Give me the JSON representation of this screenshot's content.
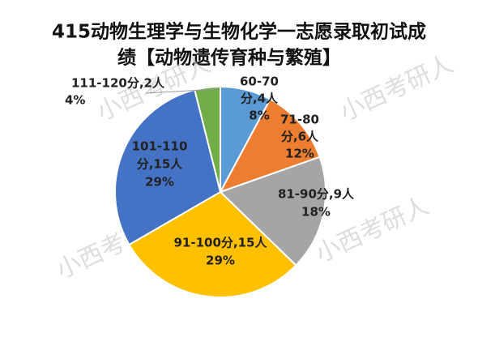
{
  "chart_data": {
    "type": "pie",
    "title_lines": [
      "415动物生理学与生物化学一志愿录取初试成",
      "绩【动物遗传育种与繁殖】"
    ],
    "values": [
      4,
      6,
      9,
      15,
      15,
      2
    ],
    "value_labels": [
      [
        "60-70",
        "分,4人",
        "8%"
      ],
      [
        "71-80",
        "分,6人",
        "12%"
      ],
      [
        "81-90分,9人",
        "18%"
      ],
      [
        "91-100分,15人",
        "29%"
      ],
      [
        "101-110",
        "分,15人",
        "29%"
      ],
      [
        "111-120分,2人",
        "4%"
      ]
    ],
    "colors": [
      "#5b9bd5",
      "#ed7d31",
      "#a5a5a5",
      "#ffc000",
      "#4472c4",
      "#70ad47"
    ],
    "watermark": "小西考研人"
  }
}
